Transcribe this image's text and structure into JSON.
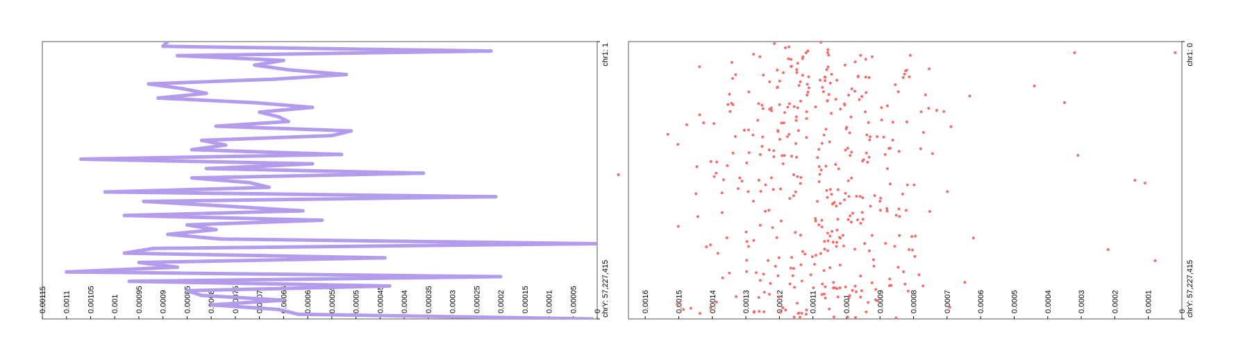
{
  "chart_data": [
    {
      "type": "line",
      "orientation": "vertical-genome",
      "color": "#b39ceb",
      "x_axis": {
        "ticks": [
          "0.00115",
          "0.0011",
          "0.00105",
          "0.001",
          "0.00095",
          "0.0009",
          "0.00085",
          "0.0008",
          "0.00075",
          "0.0007",
          "0.00065",
          "0.0006",
          "0.00055",
          "0.0005",
          "0.00045",
          "0.0004",
          "0.00035",
          "0.0003",
          "0.00025",
          "0.0002",
          "0.00015",
          "0.0001",
          "0.00005",
          "0"
        ],
        "range": [
          0.00115,
          0
        ]
      },
      "y_axis": {
        "start_label": "chr1: 1",
        "end_label": "chrY: 57,227,415"
      },
      "values": [
        0.00089,
        0.0009,
        0.00022,
        0.00087,
        0.00065,
        0.00071,
        0.00064,
        0.00052,
        0.00067,
        0.00093,
        0.00086,
        0.00081,
        0.00091,
        0.00071,
        0.00059,
        0.0007,
        0.00066,
        0.00064,
        0.00079,
        0.00051,
        0.00055,
        0.00082,
        0.00077,
        0.00084,
        0.00053,
        0.00107,
        0.00059,
        0.00081,
        0.00036,
        0.00084,
        0.00072,
        0.00068,
        0.00102,
        0.00021,
        0.00094,
        0.00077,
        0.00061,
        0.00098,
        0.00057,
        0.00085,
        0.00079,
        0.00089,
        0.00078,
        0.0,
        0.00092,
        0.00098,
        0.00044,
        0.00095,
        0.00087,
        0.0011,
        0.0002,
        0.00097,
        0.00043,
        0.00085,
        0.00082,
        0.00065,
        0.0008,
        0.00066,
        0.00062,
        1e-05
      ]
    },
    {
      "type": "scatter",
      "orientation": "vertical-genome",
      "color": "#f26c6c",
      "x_axis": {
        "ticks": [
          "0.0016",
          "0.0015",
          "0.0014",
          "0.0013",
          "0.0012",
          "0.0011",
          "0.001",
          "0.0009",
          "0.0008",
          "0.0007",
          "0.0006",
          "0.0005",
          "0.0004",
          "0.0003",
          "0.0002",
          "0.0001",
          "0"
        ],
        "range": [
          0.00165,
          0
        ]
      },
      "y_axis": {
        "start_label": "chr1: 0",
        "end_label": "chrY: 57,227,415"
      },
      "n_points": 420,
      "center": 0.00108,
      "spread": 0.00019,
      "outliers": [
        [
          0.00168,
          0.48
        ],
        [
          0.00032,
          0.04
        ],
        [
          0.00031,
          0.41
        ],
        [
          0.00014,
          0.5
        ],
        [
          0.00011,
          0.51
        ],
        [
          2e-05,
          0.04
        ],
        [
          0.00022,
          0.75
        ],
        [
          8e-05,
          0.79
        ],
        [
          0.00044,
          0.16
        ],
        [
          0.00035,
          0.22
        ]
      ]
    }
  ]
}
